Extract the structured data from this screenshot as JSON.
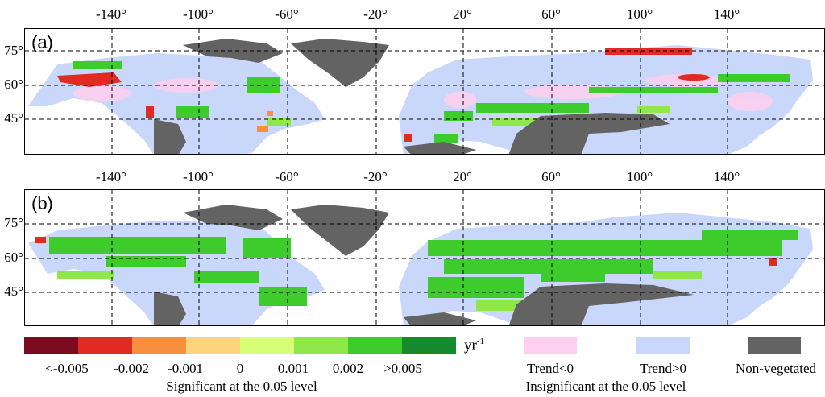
{
  "panels": {
    "a": {
      "label": "(a)"
    },
    "b": {
      "label": "(b)"
    }
  },
  "longitude_labels": [
    "-140°",
    "-100°",
    "-60°",
    "-20°",
    "20°",
    "60°",
    "100°",
    "140°"
  ],
  "latitude_labels": [
    "75°",
    "60°",
    "45°"
  ],
  "legend": {
    "colors": [
      "#7a0a1e",
      "#e02b22",
      "#f78f3f",
      "#ffd47f",
      "#d7ff78",
      "#8ee84a",
      "#3dcc2c",
      "#188a2e"
    ],
    "ticks": [
      "<-0.005",
      "-0.002",
      "-0.001",
      "0",
      "0.001",
      "0.002",
      ">0.005"
    ],
    "unit_base": "yr",
    "unit_exp": "-1",
    "significant_caption": "Significant  at the 0.05 level",
    "insignificant_caption": "Insignificant at the 0.05 level",
    "categories": [
      {
        "label": "Trend<0",
        "color": "#fdd0f0"
      },
      {
        "label": "Trend>0",
        "color": "#c9d7fb"
      },
      {
        "label": "Non-vegetated",
        "color": "#636363"
      }
    ]
  },
  "map_colors": {
    "trend_pos": "#c9d7fb",
    "trend_neg": "#fdd0f0",
    "non_vegetated": "#636363",
    "ocean": "#ffffff",
    "border": "#000000"
  }
}
